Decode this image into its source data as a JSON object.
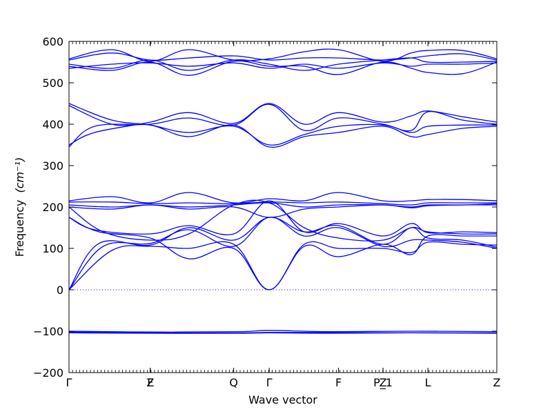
{
  "chart_data": {
    "type": "line",
    "title": "",
    "xlabel": "Wave vector",
    "ylabel": "Frequency",
    "ylabel_unit": "(cm⁻¹)",
    "ylim": [
      -200,
      600
    ],
    "yticks": [
      -200,
      -100,
      0,
      100,
      200,
      300,
      400,
      500,
      600
    ],
    "x_range": [
      0,
      1
    ],
    "high_symmetry_points": [
      {
        "label": "Γ",
        "x": 0.0
      },
      {
        "label": "Z",
        "x": 0.19
      },
      {
        "label": "F",
        "x": 0.19
      },
      {
        "label": "Q",
        "x": 0.385
      },
      {
        "label": "Γ",
        "x": 0.468
      },
      {
        "label": "F",
        "x": 0.63
      },
      {
        "label": "P_1",
        "x": 0.734
      },
      {
        "label": "Z",
        "x": 0.734
      },
      {
        "label": "L",
        "x": 0.839
      },
      {
        "label": "Z",
        "x": 1.0
      }
    ],
    "zero_line": {
      "y": 0,
      "style": "dotted"
    },
    "grid": false,
    "legend": "none",
    "series_color": "#0000ff",
    "series": [
      {
        "x": [
          0,
          0.07,
          0.19,
          0.28,
          0.385,
          0.468,
          0.55,
          0.63,
          0.734,
          0.8,
          0.839,
          0.92,
          1.0
        ],
        "y": [
          0,
          112,
          108,
          150,
          120,
          175,
          140,
          155,
          110,
          150,
          125,
          120,
          103
        ]
      },
      {
        "x": [
          0,
          0.08,
          0.19,
          0.28,
          0.385,
          0.468,
          0.55,
          0.63,
          0.734,
          0.8,
          0.839,
          0.92,
          1.0
        ],
        "y": [
          0,
          105,
          112,
          145,
          105,
          175,
          130,
          150,
          105,
          120,
          120,
          115,
          100
        ]
      },
      {
        "x": [
          0,
          0.1,
          0.19,
          0.28,
          0.385,
          0.468,
          0.55,
          0.63,
          0.734,
          0.8,
          0.839,
          0.92,
          1.0
        ],
        "y": [
          0,
          95,
          105,
          100,
          110,
          0,
          110,
          100,
          100,
          90,
          115,
          110,
          108
        ]
      },
      {
        "x": [
          0,
          0.07,
          0.19,
          0.28,
          0.385,
          0.468,
          0.55,
          0.63,
          0.734,
          0.8,
          0.839,
          0.92,
          1.0
        ],
        "y": [
          175,
          140,
          125,
          75,
          100,
          0,
          105,
          80,
          110,
          85,
          130,
          130,
          130
        ]
      },
      {
        "x": [
          0,
          0.06,
          0.19,
          0.28,
          0.385,
          0.468,
          0.55,
          0.63,
          0.734,
          0.8,
          0.839,
          0.92,
          1.0
        ],
        "y": [
          175,
          145,
          135,
          155,
          135,
          215,
          140,
          160,
          130,
          160,
          138,
          140,
          138
        ]
      },
      {
        "x": [
          0,
          0.08,
          0.19,
          0.28,
          0.385,
          0.468,
          0.55,
          0.63,
          0.734,
          0.8,
          0.839,
          0.92,
          1.0
        ],
        "y": [
          200,
          140,
          120,
          135,
          205,
          210,
          150,
          125,
          120,
          150,
          140,
          135,
          135
        ]
      },
      {
        "x": [
          0,
          0.1,
          0.19,
          0.28,
          0.385,
          0.468,
          0.55,
          0.63,
          0.734,
          0.8,
          0.839,
          0.92,
          1.0
        ],
        "y": [
          215,
          225,
          210,
          235,
          210,
          220,
          215,
          235,
          215,
          215,
          218,
          218,
          215
        ]
      },
      {
        "x": [
          0,
          0.1,
          0.19,
          0.28,
          0.385,
          0.468,
          0.55,
          0.63,
          0.734,
          0.8,
          0.839,
          0.92,
          1.0
        ],
        "y": [
          212,
          212,
          208,
          210,
          208,
          212,
          210,
          212,
          208,
          205,
          210,
          210,
          210
        ]
      },
      {
        "x": [
          0,
          0.1,
          0.19,
          0.28,
          0.385,
          0.468,
          0.55,
          0.63,
          0.734,
          0.8,
          0.839,
          0.92,
          1.0
        ],
        "y": [
          205,
          200,
          205,
          200,
          205,
          210,
          200,
          205,
          205,
          200,
          205,
          205,
          208
        ]
      },
      {
        "x": [
          0,
          0.1,
          0.19,
          0.28,
          0.385,
          0.468,
          0.55,
          0.63,
          0.734,
          0.8,
          0.839,
          0.92,
          1.0
        ],
        "y": [
          200,
          195,
          205,
          195,
          200,
          175,
          195,
          200,
          205,
          198,
          203,
          205,
          205
        ]
      },
      {
        "x": [
          0,
          0.06,
          0.19,
          0.28,
          0.385,
          0.468,
          0.55,
          0.63,
          0.734,
          0.8,
          0.839,
          0.92,
          1.0
        ],
        "y": [
          350,
          380,
          405,
          428,
          402,
          450,
          400,
          428,
          405,
          420,
          432,
          418,
          405
        ]
      },
      {
        "x": [
          0,
          0.06,
          0.19,
          0.28,
          0.385,
          0.468,
          0.55,
          0.63,
          0.734,
          0.8,
          0.839,
          0.92,
          1.0
        ],
        "y": [
          345,
          395,
          400,
          415,
          398,
          448,
          385,
          415,
          400,
          385,
          430,
          410,
          400
        ]
      },
      {
        "x": [
          0,
          0.1,
          0.19,
          0.28,
          0.385,
          0.468,
          0.55,
          0.63,
          0.734,
          0.8,
          0.839,
          0.92,
          1.0
        ],
        "y": [
          450,
          410,
          398,
          380,
          395,
          350,
          375,
          395,
          398,
          380,
          395,
          398,
          398
        ]
      },
      {
        "x": [
          0,
          0.1,
          0.19,
          0.28,
          0.385,
          0.468,
          0.55,
          0.63,
          0.734,
          0.8,
          0.839,
          0.92,
          1.0
        ],
        "y": [
          445,
          400,
          398,
          370,
          398,
          345,
          370,
          380,
          395,
          370,
          375,
          390,
          395
        ]
      },
      {
        "x": [
          0,
          0.1,
          0.19,
          0.28,
          0.385,
          0.468,
          0.55,
          0.63,
          0.734,
          0.8,
          0.839,
          0.92,
          1.0
        ],
        "y": [
          558,
          580,
          552,
          580,
          555,
          558,
          575,
          580,
          552,
          572,
          578,
          578,
          558
        ]
      },
      {
        "x": [
          0,
          0.1,
          0.19,
          0.28,
          0.385,
          0.468,
          0.55,
          0.63,
          0.734,
          0.8,
          0.839,
          0.92,
          1.0
        ],
        "y": [
          555,
          572,
          555,
          560,
          565,
          555,
          560,
          560,
          555,
          560,
          565,
          570,
          555
        ]
      },
      {
        "x": [
          0,
          0.1,
          0.19,
          0.28,
          0.385,
          0.468,
          0.55,
          0.63,
          0.734,
          0.8,
          0.839,
          0.92,
          1.0
        ],
        "y": [
          545,
          535,
          555,
          530,
          555,
          545,
          530,
          545,
          555,
          560,
          550,
          550,
          552
        ]
      },
      {
        "x": [
          0,
          0.1,
          0.19,
          0.28,
          0.385,
          0.468,
          0.55,
          0.63,
          0.734,
          0.8,
          0.839,
          0.92,
          1.0
        ],
        "y": [
          540,
          530,
          550,
          518,
          552,
          540,
          540,
          520,
          550,
          535,
          525,
          522,
          550
        ]
      },
      {
        "x": [
          0,
          0.1,
          0.19,
          0.28,
          0.385,
          0.468,
          0.55,
          0.63,
          0.734,
          0.8,
          0.839,
          0.92,
          1.0
        ],
        "y": [
          535,
          545,
          548,
          540,
          548,
          535,
          545,
          535,
          548,
          540,
          545,
          545,
          548
        ]
      },
      {
        "x": [
          0,
          0.2,
          0.4,
          0.468,
          0.6,
          0.8,
          1.0
        ],
        "y": [
          -100,
          -102,
          -101,
          -98,
          -101,
          -100,
          -101
        ]
      },
      {
        "x": [
          0,
          0.2,
          0.4,
          0.468,
          0.6,
          0.8,
          1.0
        ],
        "y": [
          -102,
          -104,
          -104,
          -103,
          -103,
          -104,
          -104
        ]
      },
      {
        "x": [
          0,
          0.2,
          0.4,
          0.468,
          0.6,
          0.8,
          1.0
        ],
        "y": [
          -104,
          -105,
          -105,
          -104,
          -105,
          -104,
          -105
        ]
      }
    ]
  }
}
